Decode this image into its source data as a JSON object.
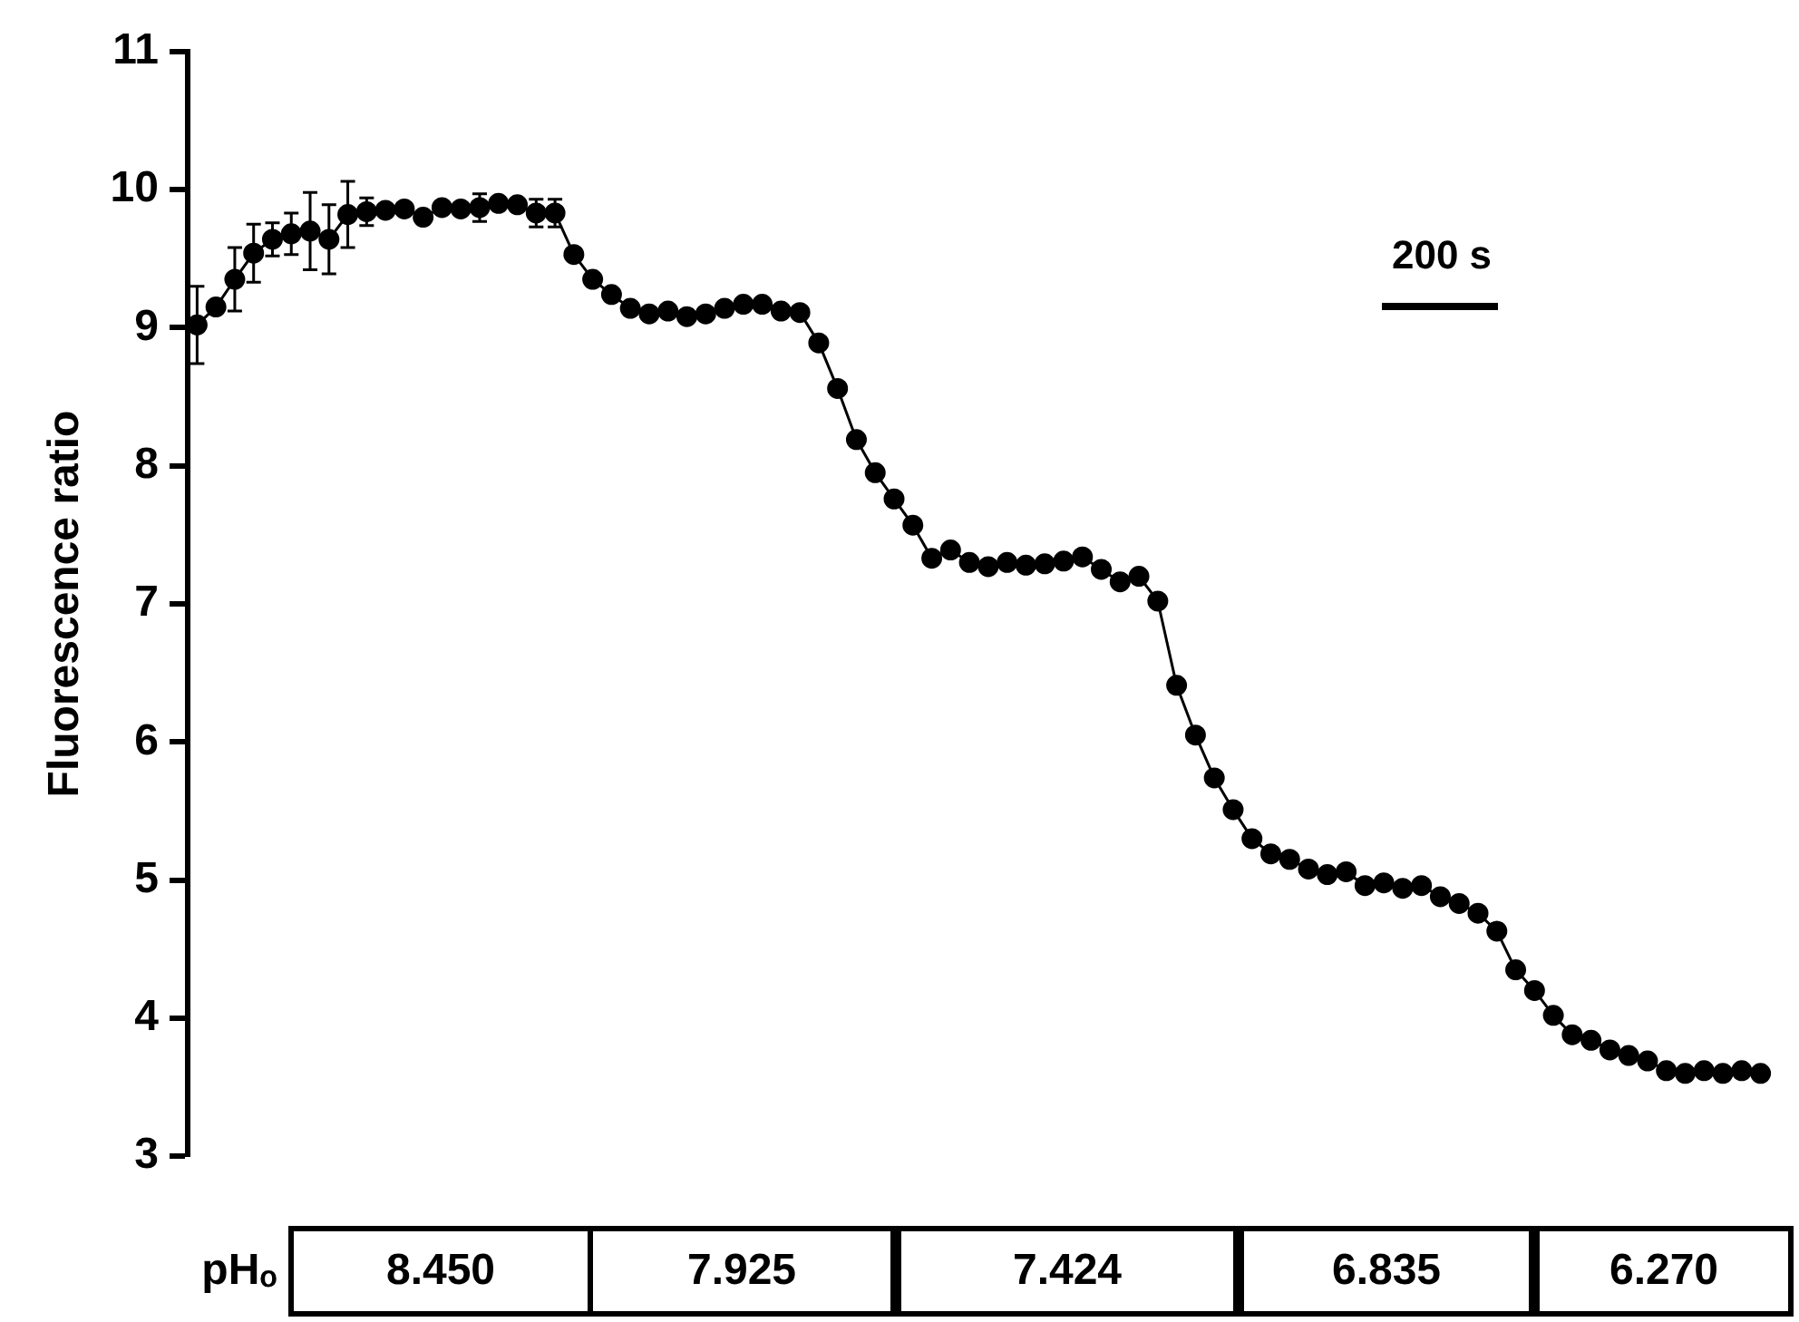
{
  "chart_data": {
    "type": "line",
    "ylabel": "Fluorescence ratio",
    "categories": [
      null,
      null,
      null,
      null,
      null,
      null,
      null,
      null,
      null,
      null,
      null,
      null,
      null,
      null,
      null,
      null,
      null,
      null,
      null,
      null,
      null,
      null,
      null,
      null,
      null,
      null,
      null,
      null,
      null,
      null,
      null,
      null,
      null,
      null,
      null,
      null,
      null,
      null,
      null,
      null,
      null,
      null,
      null,
      null,
      null,
      null,
      null,
      null,
      null,
      null,
      null,
      null,
      null,
      null,
      null,
      null,
      null,
      null,
      null,
      null,
      null,
      null,
      null,
      null,
      null,
      null,
      null,
      null,
      null,
      null,
      null,
      null,
      null,
      null,
      null,
      null,
      null,
      null,
      null,
      null,
      null,
      null,
      null,
      null
    ],
    "series": [
      {
        "color": "#000000",
        "values": [
          9.02,
          9.15,
          9.35,
          9.54,
          9.64,
          9.68,
          9.7,
          9.64,
          9.82,
          9.84,
          9.85,
          9.86,
          9.8,
          9.87,
          9.86,
          9.87,
          9.9,
          9.89,
          9.83,
          9.83,
          9.53,
          9.35,
          9.24,
          9.14,
          9.1,
          9.12,
          9.08,
          9.1,
          9.14,
          9.17,
          9.17,
          9.12,
          9.11,
          8.89,
          8.56,
          8.19,
          7.95,
          7.76,
          7.57,
          7.33,
          7.39,
          7.3,
          7.27,
          7.3,
          7.28,
          7.29,
          7.31,
          7.34,
          7.25,
          7.16,
          7.2,
          7.02,
          6.41,
          6.05,
          5.74,
          5.51,
          5.3,
          5.19,
          5.15,
          5.08,
          5.04,
          5.06,
          4.96,
          4.98,
          4.94,
          4.96,
          4.88,
          4.83,
          4.76,
          4.63,
          4.35,
          4.2,
          4.02,
          3.88,
          3.84,
          3.77,
          3.73,
          3.69,
          3.62,
          3.6,
          3.62,
          3.6,
          3.62,
          3.6
        ],
        "errors": [
          0.28,
          null,
          0.23,
          0.21,
          0.12,
          0.15,
          0.28,
          0.25,
          0.24,
          0.1,
          null,
          null,
          null,
          null,
          null,
          0.1,
          null,
          null,
          0.1,
          0.1,
          null,
          null,
          null,
          null,
          null,
          null,
          null,
          null,
          null,
          null,
          null,
          null,
          null,
          null,
          null,
          null,
          null,
          null,
          null,
          null,
          null,
          null,
          null,
          null,
          null,
          null,
          null,
          null,
          null,
          null,
          null,
          null,
          null,
          null,
          null,
          null,
          null,
          null,
          null,
          null,
          null,
          null,
          null,
          null,
          null,
          null,
          null,
          null,
          null,
          null,
          null,
          null,
          null,
          null,
          null,
          null,
          null,
          null,
          null,
          null,
          null,
          null,
          null,
          null
        ]
      }
    ],
    "ylim": [
      3,
      11
    ],
    "yticks": [
      3,
      4,
      5,
      6,
      7,
      8,
      9,
      10,
      11
    ],
    "tick_labels": "y",
    "grid": false,
    "legend": false,
    "marker": "circle",
    "line_style": "solid",
    "annotations": [
      "200 s",
      "pHₒ",
      "8.450",
      "7.925",
      "7.424",
      "6.835",
      "6.270"
    ]
  }
}
